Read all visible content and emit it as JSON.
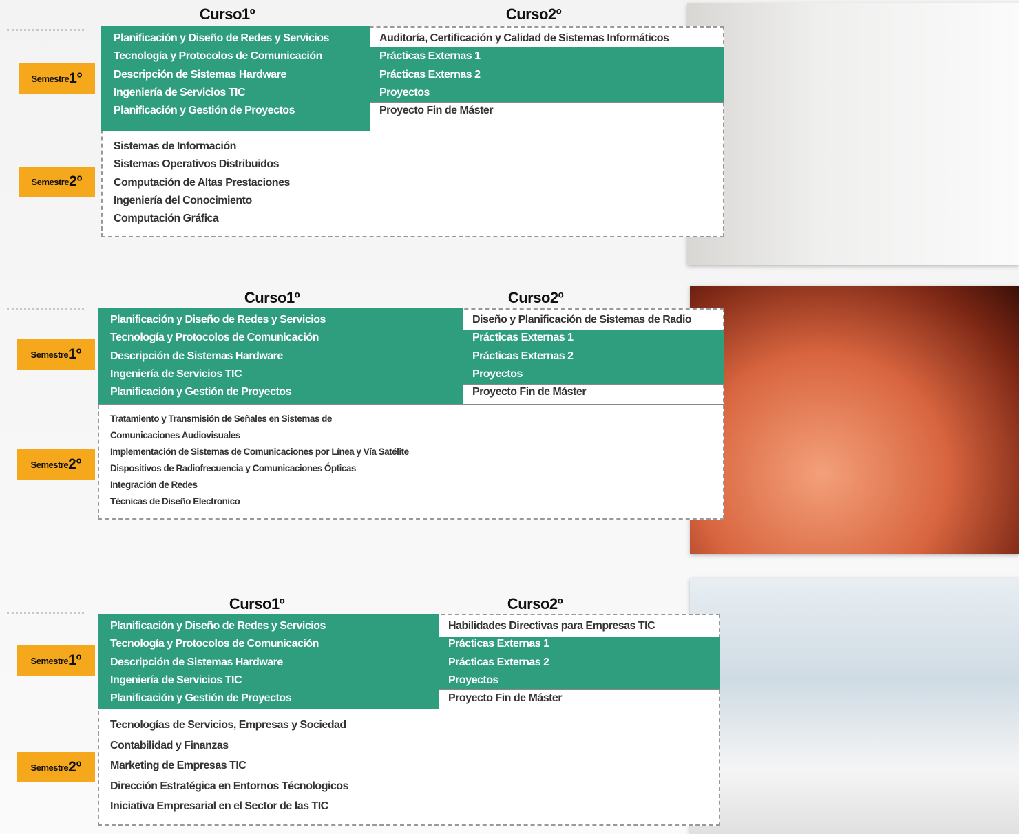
{
  "blocks": [
    {
      "curso1": "Curso1º",
      "curso2": "Curso2º",
      "semestre1": {
        "word": "Semestre",
        "number": "1º"
      },
      "semestre2": {
        "word": "Semestre",
        "number": "2º"
      },
      "curso1_semestre1": [
        "Planificación y Diseño de Redes y Servicios",
        "Tecnología y Protocolos de Comunicación",
        "Descripción de Sistemas Hardware",
        "Ingeniería de Servicios TIC",
        "Planificación y Gestión de Proyectos"
      ],
      "curso2_semestre1": [
        "Auditoría, Certificación y Calidad de Sistemas Informáticos",
        "Prácticas Externas 1",
        "Prácticas Externas 2",
        "Proyectos",
        "Proyecto Fin de Máster"
      ],
      "curso1_semestre2": [
        "Sistemas de Información",
        "Sistemas Operativos Distribuidos",
        "Computación de Altas Prestaciones",
        "Ingeniería del Conocimiento",
        "Computación Gráfica"
      ]
    },
    {
      "curso1": "Curso1º",
      "curso2": "Curso2º",
      "semestre1": {
        "word": "Semestre",
        "number": "1º"
      },
      "semestre2": {
        "word": "Semestre",
        "number": "2º"
      },
      "curso1_semestre1": [
        "Planificación y Diseño de Redes y Servicios",
        "Tecnología y Protocolos de Comunicación",
        "Descripción de Sistemas Hardware",
        "Ingeniería de Servicios TIC",
        "Planificación y Gestión de Proyectos"
      ],
      "curso2_semestre1": [
        "Diseño y Planificación de Sistemas de Radio",
        "Prácticas Externas 1",
        "Prácticas Externas 2",
        "Proyectos",
        "Proyecto Fin de Máster"
      ],
      "curso1_semestre2": [
        "Tratamiento y Transmisión de Señales en Sistemas de",
        "Comunicaciones Audiovisuales",
        "Implementación de Sistemas de Comunicaciones por Línea y Vía Satélite",
        "Dispositivos de Radiofrecuencia y Comunicaciones Ópticas",
        "Integración de Redes",
        "Técnicas de Diseño Electronico"
      ]
    },
    {
      "curso1": "Curso1º",
      "curso2": "Curso2º",
      "semestre1": {
        "word": "Semestre",
        "number": "1º"
      },
      "semestre2": {
        "word": "Semestre",
        "number": "2º"
      },
      "curso1_semestre1": [
        "Planificación y Diseño de Redes y Servicios",
        "Tecnología y Protocolos de Comunicación",
        "Descripción de Sistemas Hardware",
        "Ingeniería de Servicios TIC",
        "Planificación y Gestión de Proyectos"
      ],
      "curso2_semestre1": [
        "Habilidades Directivas para Empresas TIC",
        "Prácticas Externas 1",
        "Prácticas Externas 2",
        "Proyectos",
        "Proyecto Fin de Máster"
      ],
      "curso1_semestre2": [
        "Tecnologías de Servicios, Empresas y Sociedad",
        "Contabilidad y Finanzas",
        "Marketing de Empresas TIC",
        "Dirección Estratégica en Entornos Técnologicos",
        "Iniciativa Empresarial en el Sector de las TIC"
      ]
    }
  ]
}
